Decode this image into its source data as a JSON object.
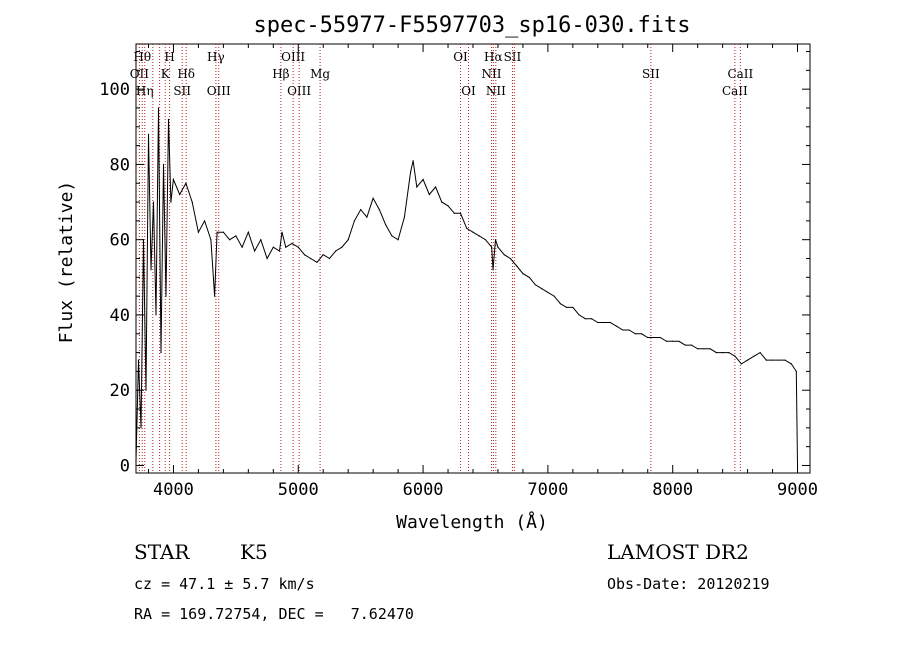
{
  "chart_data": {
    "type": "line",
    "title": "spec-55977-F5597703_sp16-030.fits",
    "xlabel": "Wavelength (Å)",
    "ylabel": "Flux (relative)",
    "xlim": [
      3700,
      9100
    ],
    "ylim": [
      -2,
      112
    ],
    "x_ticks": [
      "4000",
      "5000",
      "6000",
      "7000",
      "8000",
      "9000"
    ],
    "y_ticks": [
      "0",
      "20",
      "40",
      "60",
      "80",
      "100"
    ],
    "grid": false,
    "line_color": "#000000",
    "marker_color": "#b22222",
    "series": [
      {
        "x": [
          3700,
          3720,
          3740,
          3760,
          3780,
          3800,
          3820,
          3840,
          3860,
          3880,
          3900,
          3920,
          3940,
          3960,
          3980,
          4000,
          4050,
          4100,
          4150,
          4200,
          4250,
          4300,
          4330,
          4350,
          4400,
          4450,
          4500,
          4550,
          4600,
          4650,
          4700,
          4750,
          4800,
          4850,
          4870,
          4900,
          4950,
          5000,
          5050,
          5100,
          5150,
          5200,
          5250,
          5300,
          5350,
          5400,
          5450,
          5500,
          5550,
          5600,
          5650,
          5700,
          5750,
          5800,
          5850,
          5900,
          5920,
          5950,
          6000,
          6050,
          6100,
          6150,
          6200,
          6250,
          6300,
          6350,
          6400,
          6450,
          6500,
          6550,
          6560,
          6580,
          6600,
          6650,
          6700,
          6750,
          6800,
          6850,
          6900,
          6950,
          7000,
          7050,
          7100,
          7150,
          7200,
          7250,
          7300,
          7350,
          7400,
          7450,
          7500,
          7550,
          7600,
          7650,
          7700,
          7750,
          7800,
          7850,
          7900,
          7950,
          8000,
          8050,
          8100,
          8150,
          8200,
          8250,
          8300,
          8350,
          8400,
          8450,
          8500,
          8550,
          8600,
          8650,
          8700,
          8750,
          8800,
          8850,
          8900,
          8950,
          8990,
          9000
        ],
        "y": [
          1,
          28,
          10,
          60,
          20,
          88,
          52,
          70,
          40,
          95,
          30,
          80,
          45,
          92,
          70,
          76,
          72,
          75,
          70,
          62,
          65,
          60,
          45,
          62,
          62,
          60,
          61,
          58,
          62,
          57,
          60,
          55,
          58,
          57,
          62,
          58,
          59,
          58,
          56,
          55,
          54,
          56,
          55,
          57,
          58,
          60,
          65,
          68,
          66,
          71,
          68,
          64,
          61,
          60,
          66,
          78,
          81,
          74,
          76,
          72,
          74,
          70,
          69,
          67,
          67,
          63,
          62,
          61,
          60,
          58,
          52,
          60,
          58,
          56,
          55,
          53,
          51,
          50,
          48,
          47,
          46,
          45,
          43,
          42,
          42,
          40,
          39,
          39,
          38,
          38,
          38,
          37,
          36,
          36,
          35,
          35,
          34,
          34,
          34,
          33,
          33,
          33,
          32,
          32,
          31,
          31,
          31,
          30,
          30,
          30,
          29,
          27,
          28,
          29,
          30,
          28,
          28,
          28,
          28,
          27,
          25,
          0
        ]
      }
    ],
    "line_markers": [
      {
        "wavelength": 3727,
        "label": "OII",
        "row": 2
      },
      {
        "wavelength": 3750,
        "label": "Hθ",
        "row": 1
      },
      {
        "wavelength": 3770,
        "label": "Hη",
        "row": 3
      },
      {
        "wavelength": 3835,
        "label": "",
        "row": 0
      },
      {
        "wavelength": 3889,
        "label": "",
        "row": 0
      },
      {
        "wavelength": 3934,
        "label": "K",
        "row": 2
      },
      {
        "wavelength": 3969,
        "label": "H",
        "row": 1
      },
      {
        "wavelength": 4070,
        "label": "SII",
        "row": 3
      },
      {
        "wavelength": 4102,
        "label": "Hδ",
        "row": 2
      },
      {
        "wavelength": 4340,
        "label": "Hγ",
        "row": 1
      },
      {
        "wavelength": 4363,
        "label": "OIII",
        "row": 3
      },
      {
        "wavelength": 4861,
        "label": "Hβ",
        "row": 2
      },
      {
        "wavelength": 4959,
        "label": "OIII",
        "row": 1
      },
      {
        "wavelength": 5007,
        "label": "OIII",
        "row": 3
      },
      {
        "wavelength": 5175,
        "label": "Mg",
        "row": 2
      },
      {
        "wavelength": 6300,
        "label": "OI",
        "row": 1
      },
      {
        "wavelength": 6364,
        "label": "OI",
        "row": 3
      },
      {
        "wavelength": 6548,
        "label": "NII",
        "row": 2
      },
      {
        "wavelength": 6563,
        "label": "Hα",
        "row": 1
      },
      {
        "wavelength": 6583,
        "label": "NII",
        "row": 3
      },
      {
        "wavelength": 6716,
        "label": "SII",
        "row": 1
      },
      {
        "wavelength": 6731,
        "label": "",
        "row": 0
      },
      {
        "wavelength": 7825,
        "label": "SII",
        "row": 2
      },
      {
        "wavelength": 8498,
        "label": "CaII",
        "row": 3
      },
      {
        "wavelength": 8542,
        "label": "CaII",
        "row": 2
      }
    ]
  },
  "info": {
    "object_class": "STAR",
    "subclass": "K5",
    "survey": "LAMOST DR2",
    "cz": "cz = 47.1 ± 5.7 km/s",
    "obs_date": "Obs-Date: 20120219",
    "coords": "RA = 169.72754, DEC =   7.62470"
  }
}
